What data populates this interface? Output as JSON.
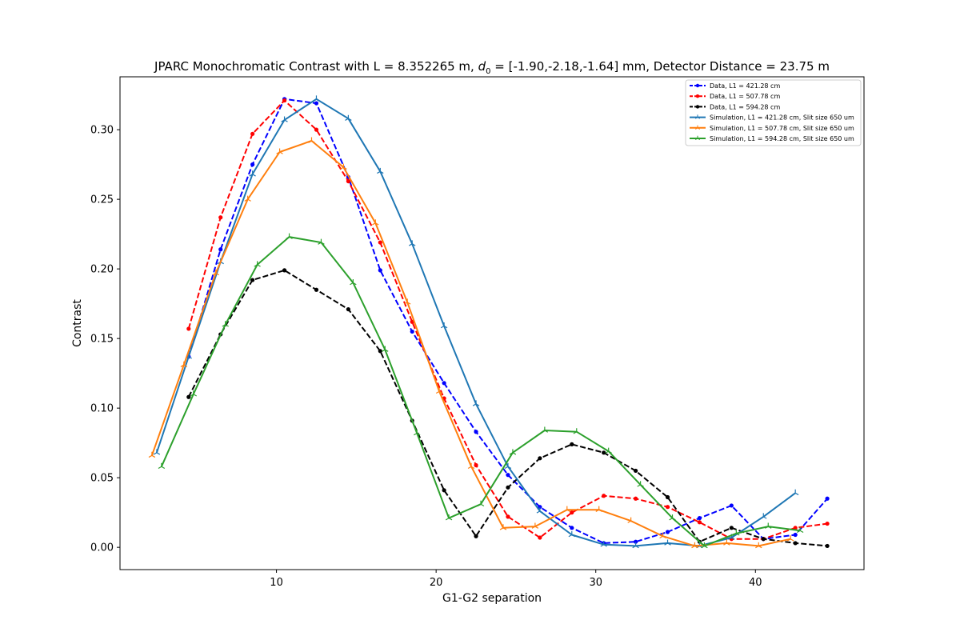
{
  "chart_data": {
    "type": "line",
    "title_prefix": "JPARC Monochromatic Contrast with L = 8.352265 m, ",
    "title_math": "d",
    "title_math_sub": "0",
    "title_suffix": " = [-1.90,-2.18,-1.64] mm, Detector Distance = 23.75 m",
    "xlabel": "G1-G2 separation",
    "ylabel": "Contrast",
    "xlim": [
      0.2,
      46.8
    ],
    "ylim": [
      -0.016,
      0.338
    ],
    "xticks": [
      10,
      20,
      30,
      40
    ],
    "yticks": [
      0.0,
      0.05,
      0.1,
      0.15,
      0.2,
      0.25,
      0.3
    ],
    "ytick_labels": [
      "0.00",
      "0.05",
      "0.10",
      "0.15",
      "0.20",
      "0.25",
      "0.30"
    ],
    "legend_position": "top-right",
    "grid": false,
    "series": [
      {
        "name": "Data, L1 = 421.28 cm",
        "color": "#0000ff",
        "style": "dashed",
        "marker": "dot",
        "x": [
          4.5,
          6.5,
          8.5,
          10.5,
          12.5,
          14.5,
          16.5,
          18.5,
          20.5,
          22.5,
          24.5,
          26.5,
          28.5,
          30.5,
          32.5,
          34.5,
          36.5,
          38.5,
          40.5,
          42.5,
          44.5
        ],
        "y": [
          0.137,
          0.214,
          0.275,
          0.322,
          0.319,
          0.266,
          0.199,
          0.155,
          0.118,
          0.083,
          0.052,
          0.029,
          0.014,
          0.003,
          0.004,
          0.011,
          0.021,
          0.03,
          0.006,
          0.009,
          0.035
        ]
      },
      {
        "name": "Data, L1 = 507.78 cm",
        "color": "#ff0000",
        "style": "dashed",
        "marker": "dot",
        "x": [
          4.5,
          6.5,
          8.5,
          10.5,
          12.5,
          14.5,
          16.5,
          18.5,
          20.5,
          22.5,
          24.5,
          26.5,
          28.5,
          30.5,
          32.5,
          34.5,
          36.5,
          38.5,
          40.5,
          42.5,
          44.5
        ],
        "y": [
          0.157,
          0.237,
          0.297,
          0.321,
          0.3,
          0.263,
          0.219,
          0.162,
          0.107,
          0.059,
          0.022,
          0.007,
          0.025,
          0.037,
          0.035,
          0.029,
          0.018,
          0.006,
          0.006,
          0.014,
          0.017
        ]
      },
      {
        "name": "Data, L1 = 594.28 cm",
        "color": "#000000",
        "style": "dashed",
        "marker": "dot",
        "x": [
          4.5,
          6.5,
          8.5,
          10.5,
          12.5,
          14.5,
          16.5,
          18.5,
          20.5,
          22.5,
          24.5,
          26.5,
          28.5,
          30.5,
          32.5,
          34.5,
          36.5,
          38.5,
          40.5,
          42.5,
          44.5
        ],
        "y": [
          0.108,
          0.153,
          0.192,
          0.199,
          0.185,
          0.171,
          0.141,
          0.091,
          0.041,
          0.008,
          0.043,
          0.064,
          0.074,
          0.068,
          0.055,
          0.036,
          0.004,
          0.014,
          0.006,
          0.003,
          0.001
        ]
      },
      {
        "name": "Simulation, L1 = 421.28 cm, Slit size 650 um",
        "color": "#1f77b4",
        "style": "solid",
        "marker": "tri",
        "x": [
          2.5,
          4.5,
          6.5,
          8.5,
          10.5,
          12.5,
          14.5,
          16.5,
          18.5,
          20.5,
          22.5,
          24.5,
          26.5,
          28.5,
          30.5,
          32.5,
          34.5,
          36.5,
          38.5,
          40.5,
          42.5
        ],
        "y": [
          0.068,
          0.137,
          0.205,
          0.268,
          0.307,
          0.322,
          0.308,
          0.27,
          0.218,
          0.159,
          0.103,
          0.058,
          0.026,
          0.009,
          0.002,
          0.001,
          0.003,
          0.001,
          0.007,
          0.022,
          0.039
        ]
      },
      {
        "name": "Simulation, L1 = 507.78 cm, Slit size 650 um",
        "color": "#ff7f0e",
        "style": "solid",
        "marker": "tri",
        "x": [
          2.2,
          4.2,
          6.2,
          8.2,
          10.2,
          12.2,
          14.2,
          16.2,
          18.2,
          20.2,
          22.2,
          24.2,
          26.2,
          28.2,
          30.2,
          32.2,
          34.2,
          36.2,
          38.2,
          40.2,
          42.2
        ],
        "y": [
          0.066,
          0.131,
          0.197,
          0.25,
          0.284,
          0.292,
          0.273,
          0.233,
          0.176,
          0.112,
          0.058,
          0.014,
          0.015,
          0.027,
          0.027,
          0.019,
          0.008,
          0.001,
          0.003,
          0.001,
          0.006
        ]
      },
      {
        "name": "Simulation, L1 = 594.28 cm, Slit size 650 um",
        "color": "#2ca02c",
        "style": "solid",
        "marker": "tri",
        "x": [
          2.8,
          4.8,
          6.8,
          8.8,
          10.8,
          12.8,
          14.8,
          16.8,
          18.8,
          20.8,
          22.8,
          24.8,
          26.8,
          28.8,
          30.8,
          32.8,
          34.8,
          36.8,
          38.8,
          40.8,
          42.8
        ],
        "y": [
          0.058,
          0.11,
          0.16,
          0.203,
          0.223,
          0.219,
          0.19,
          0.142,
          0.082,
          0.021,
          0.031,
          0.068,
          0.084,
          0.083,
          0.069,
          0.045,
          0.021,
          0.001,
          0.01,
          0.015,
          0.012
        ]
      }
    ]
  }
}
